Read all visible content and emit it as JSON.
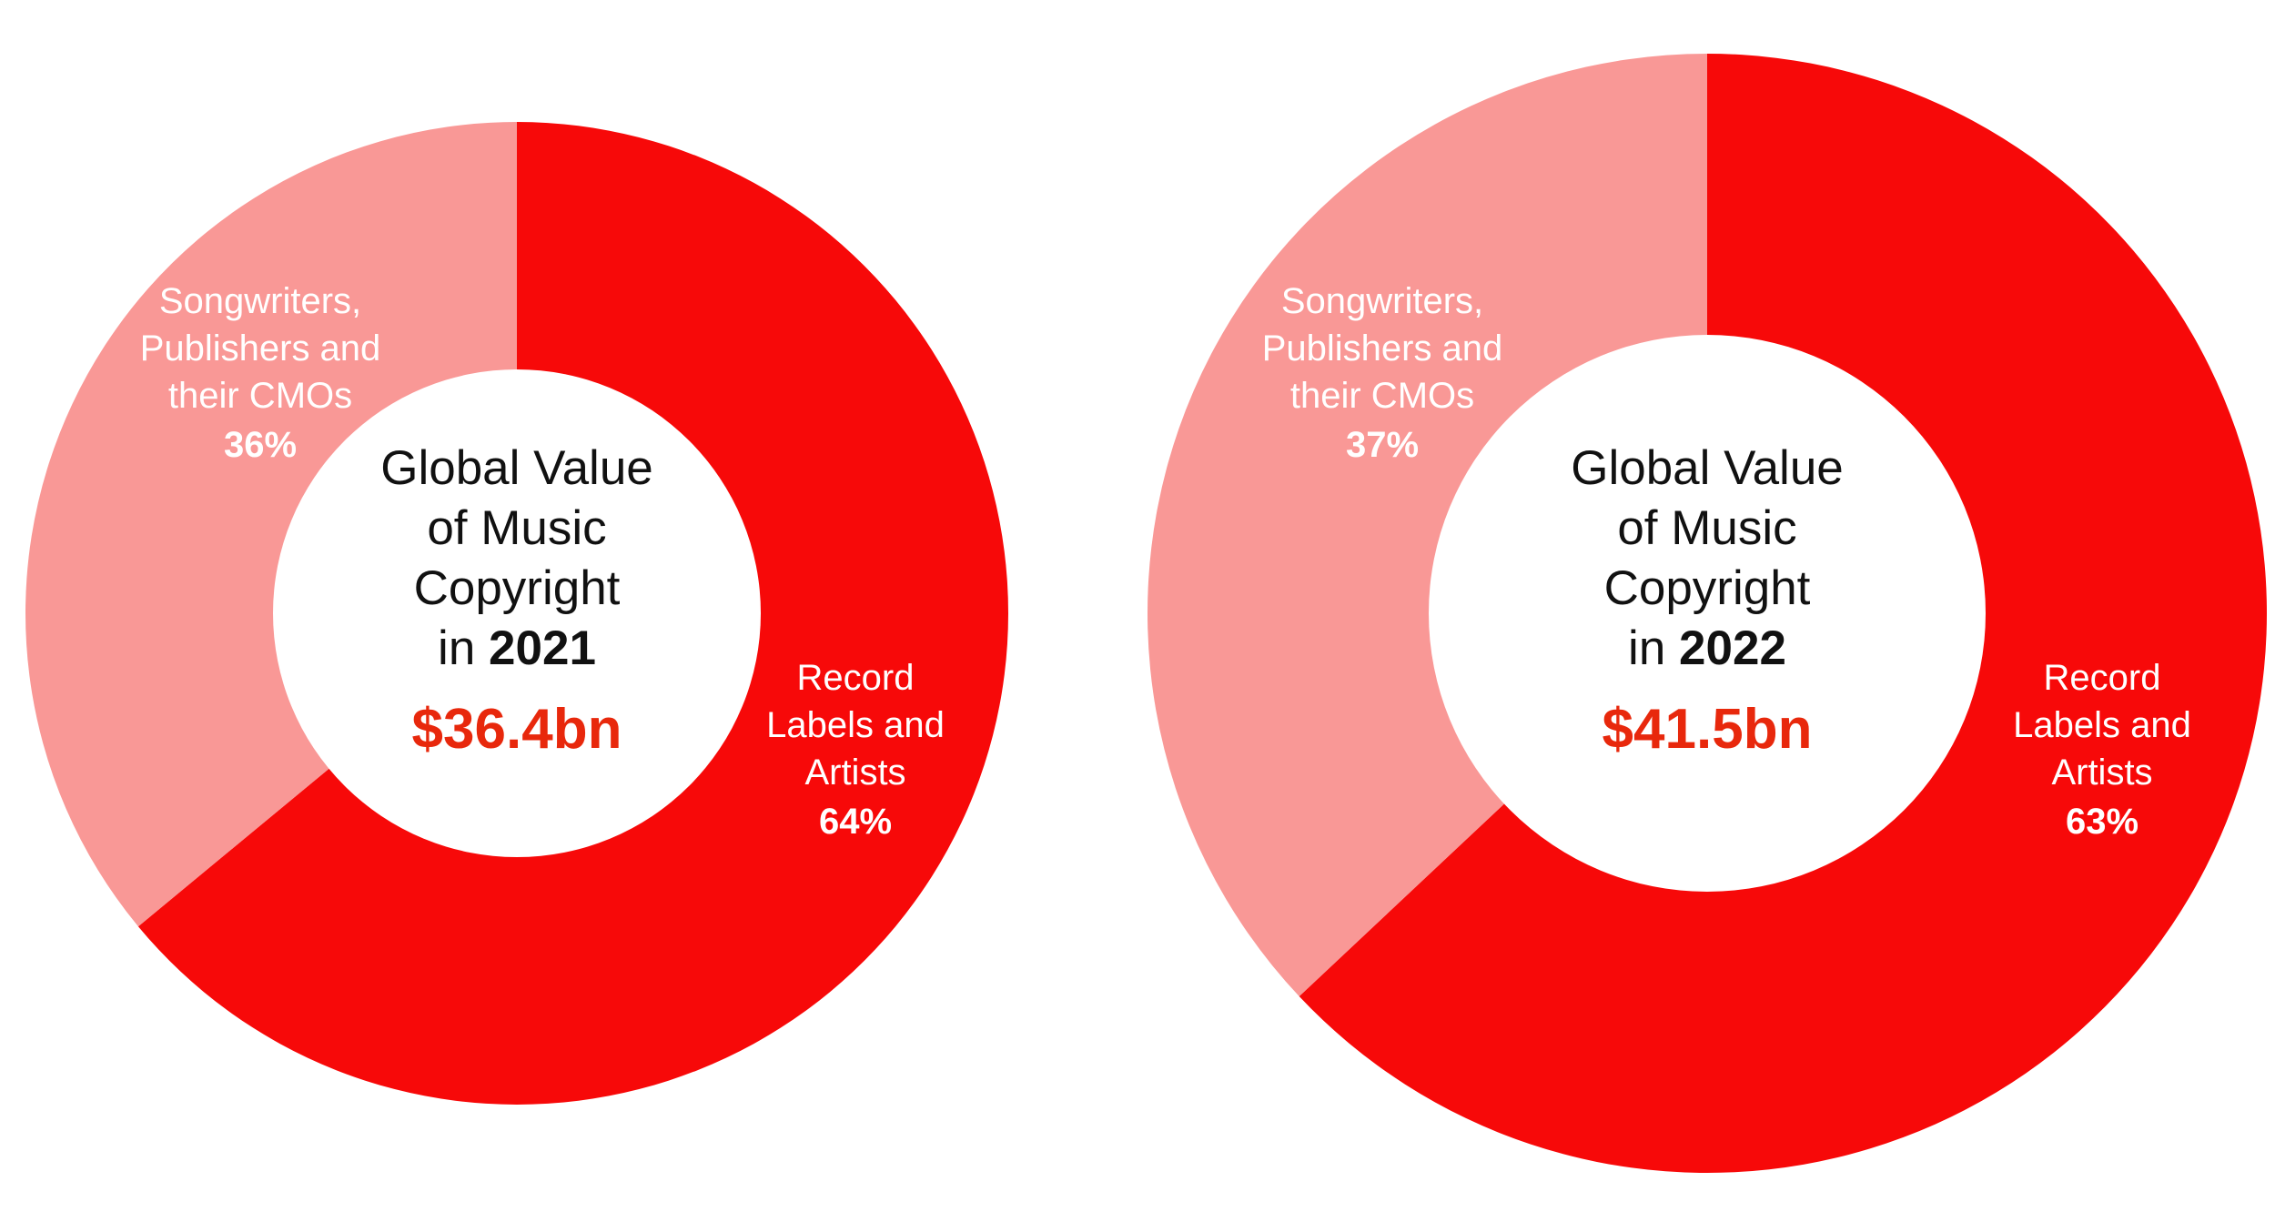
{
  "colors": {
    "primary": "#f70909",
    "secondary": "#f99896",
    "value_text": "#e8280c",
    "center_fill": "#ffffff"
  },
  "chart_data": [
    {
      "type": "pie",
      "style": "donut",
      "title_lines": [
        "Global Value",
        "of Music",
        "Copyright"
      ],
      "year_prefix": "in",
      "year": "2021",
      "total_label": "$36.4bn",
      "slices": [
        {
          "label_lines": [
            "Record",
            "Labels and",
            "Artists"
          ],
          "value": 64,
          "value_label": "64%",
          "color": "#f70909"
        },
        {
          "label_lines": [
            "Songwriters,",
            "Publishers and",
            "their CMOs"
          ],
          "value": 36,
          "value_label": "36%",
          "color": "#f99896"
        }
      ]
    },
    {
      "type": "pie",
      "style": "donut",
      "title_lines": [
        "Global Value",
        "of Music",
        "Copyright"
      ],
      "year_prefix": "in",
      "year": "2022",
      "total_label": "$41.5bn",
      "slices": [
        {
          "label_lines": [
            "Record",
            "Labels and",
            "Artists"
          ],
          "value": 63,
          "value_label": "63%",
          "color": "#f70909"
        },
        {
          "label_lines": [
            "Songwriters,",
            "Publishers and",
            "their CMOs"
          ],
          "value": 37,
          "value_label": "37%",
          "color": "#f99896"
        }
      ]
    }
  ]
}
